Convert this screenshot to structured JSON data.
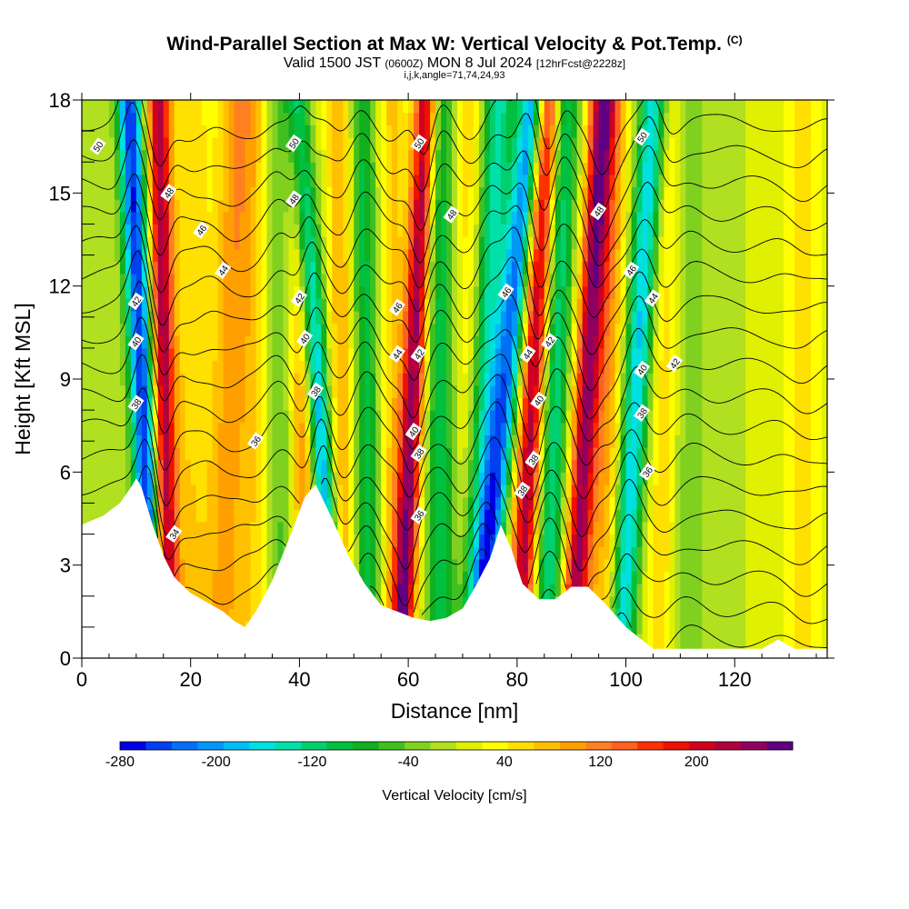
{
  "title": "Wind-Parallel Section at Max W: Vertical Velocity & Pot.Temp.",
  "copyright_mark": "(C)",
  "valid_prefix": "Valid 1500 JST",
  "valid_utc": "(0600Z)",
  "valid_date": "MON 8 Jul 2024",
  "forecast_info": "[12hrFcst@2228z]",
  "ijk_info": "i,j,k,angle=71,74,24,93",
  "chart_data": {
    "type": "heatmap",
    "xlabel": "Distance [nm]",
    "ylabel": "Height [Kft MSL]",
    "xlim": [
      0,
      137
    ],
    "ylim": [
      0,
      18
    ],
    "x_ticks": [
      0,
      20,
      40,
      60,
      80,
      100,
      120
    ],
    "y_ticks": [
      0,
      3,
      6,
      9,
      12,
      15,
      18
    ],
    "grid": false,
    "colorbar": {
      "title": "Vertical Velocity [cm/s]",
      "range": [
        -280,
        280
      ],
      "tick_labels": [
        -280,
        -200,
        -120,
        -40,
        40,
        120,
        200
      ],
      "colors": [
        "#0000e6",
        "#0040f0",
        "#0070f5",
        "#0098f8",
        "#00bff8",
        "#00e0e0",
        "#00e0a8",
        "#00d070",
        "#00c040",
        "#10b020",
        "#40c020",
        "#80d020",
        "#b0e020",
        "#e0f000",
        "#ffff00",
        "#ffe000",
        "#ffc000",
        "#ffa000",
        "#ff8020",
        "#ff6020",
        "#ff3000",
        "#f01000",
        "#d00020",
        "#b00040",
        "#900060",
        "#600080"
      ]
    },
    "terrain_profile": {
      "x": [
        0,
        4,
        7,
        9,
        10,
        11,
        13,
        15,
        17,
        20,
        23,
        26,
        28,
        30,
        32,
        35,
        38,
        41,
        43,
        46,
        49,
        52,
        55,
        58,
        61,
        64,
        67,
        70,
        72,
        75,
        77,
        79,
        81,
        84,
        87,
        90,
        93,
        96,
        100,
        105,
        110,
        115,
        120,
        125,
        128,
        131,
        134,
        137
      ],
      "height": [
        4.3,
        4.6,
        5.0,
        5.5,
        5.8,
        5.5,
        4.3,
        3.3,
        2.6,
        2.1,
        1.8,
        1.5,
        1.2,
        1.0,
        1.5,
        2.5,
        3.8,
        5.2,
        5.6,
        4.5,
        3.3,
        2.4,
        1.7,
        1.5,
        1.3,
        1.2,
        1.3,
        1.6,
        2.2,
        3.2,
        4.3,
        3.5,
        2.4,
        1.9,
        1.9,
        2.3,
        2.3,
        1.8,
        1.0,
        0.3,
        0.3,
        0.3,
        0.3,
        0.3,
        0.6,
        0.3,
        0.3,
        0.3
      ]
    },
    "velocity_bands": [
      {
        "x": 11,
        "w": -260,
        "sig": 1.6,
        "tilt": -0.25
      },
      {
        "x": 15,
        "w": 230,
        "sig": 1.5,
        "tilt": -0.1
      },
      {
        "x": 20,
        "w": 60,
        "sig": 2.5,
        "tilt": 0.0
      },
      {
        "x": 27,
        "w": 90,
        "sig": 2.5,
        "tilt": 0.15
      },
      {
        "x": 32,
        "w": 60,
        "sig": 2.5,
        "tilt": 0.0
      },
      {
        "x": 36,
        "w": -60,
        "sig": 2.0,
        "tilt": 0.0
      },
      {
        "x": 41,
        "w": 140,
        "sig": 1.8,
        "tilt": -0.1
      },
      {
        "x": 43,
        "w": -240,
        "sig": 1.6,
        "tilt": -0.35
      },
      {
        "x": 48,
        "w": 100,
        "sig": 2.0,
        "tilt": 0.0
      },
      {
        "x": 52,
        "w": -110,
        "sig": 2.0,
        "tilt": -0.1
      },
      {
        "x": 57,
        "w": 70,
        "sig": 2.0,
        "tilt": 0.0
      },
      {
        "x": 61,
        "w": 240,
        "sig": 1.5,
        "tilt": 0.25
      },
      {
        "x": 66,
        "w": -100,
        "sig": 2.0,
        "tilt": 0.0
      },
      {
        "x": 71,
        "w": 60,
        "sig": 2.0,
        "tilt": 0.0
      },
      {
        "x": 74,
        "w": -140,
        "sig": 2.0,
        "tilt": 0.3
      },
      {
        "x": 78,
        "w": -220,
        "sig": 1.8,
        "tilt": 0.55
      },
      {
        "x": 83,
        "w": 230,
        "sig": 1.7,
        "tilt": 0.3
      },
      {
        "x": 87,
        "w": -130,
        "sig": 1.8,
        "tilt": 0.2
      },
      {
        "x": 93,
        "w": 240,
        "sig": 1.7,
        "tilt": 0.3
      },
      {
        "x": 97,
        "w": 90,
        "sig": 2.0,
        "tilt": 0.1
      },
      {
        "x": 102,
        "w": -180,
        "sig": 1.8,
        "tilt": 0.35
      },
      {
        "x": 107,
        "w": 60,
        "sig": 2.0,
        "tilt": 0.1
      },
      {
        "x": 112,
        "w": -40,
        "sig": 2.5,
        "tilt": 0.0
      },
      {
        "x": 133,
        "w": 100,
        "sig": 2.5,
        "tilt": 0.0
      }
    ],
    "pot_temp_contours": {
      "levels_K": [
        34,
        35,
        36,
        37,
        38,
        39,
        40,
        41,
        42,
        43,
        44,
        45,
        46,
        47,
        48,
        49,
        50,
        51
      ],
      "labels": [
        {
          "text": "50",
          "x": 3,
          "y": 16.5
        },
        {
          "text": "48",
          "x": 16,
          "y": 15.0
        },
        {
          "text": "46",
          "x": 22,
          "y": 13.8
        },
        {
          "text": "44",
          "x": 26,
          "y": 12.5
        },
        {
          "text": "42",
          "x": 10,
          "y": 11.5
        },
        {
          "text": "40",
          "x": 10,
          "y": 10.2
        },
        {
          "text": "38",
          "x": 10,
          "y": 8.2
        },
        {
          "text": "34",
          "x": 17,
          "y": 4.0
        },
        {
          "text": "36",
          "x": 32,
          "y": 7.0
        },
        {
          "text": "50",
          "x": 39,
          "y": 16.6
        },
        {
          "text": "48",
          "x": 39,
          "y": 14.8
        },
        {
          "text": "42",
          "x": 40,
          "y": 11.6
        },
        {
          "text": "40",
          "x": 41,
          "y": 10.3
        },
        {
          "text": "38",
          "x": 43,
          "y": 8.6
        },
        {
          "text": "50",
          "x": 62,
          "y": 16.6
        },
        {
          "text": "48",
          "x": 68,
          "y": 14.3
        },
        {
          "text": "46",
          "x": 58,
          "y": 11.3
        },
        {
          "text": "44",
          "x": 58,
          "y": 9.8
        },
        {
          "text": "42",
          "x": 62,
          "y": 9.8
        },
        {
          "text": "40",
          "x": 61,
          "y": 7.3
        },
        {
          "text": "38",
          "x": 62,
          "y": 6.6
        },
        {
          "text": "36",
          "x": 62,
          "y": 4.6
        },
        {
          "text": "46",
          "x": 78,
          "y": 11.8
        },
        {
          "text": "44",
          "x": 82,
          "y": 9.8
        },
        {
          "text": "42",
          "x": 86,
          "y": 10.2
        },
        {
          "text": "40",
          "x": 84,
          "y": 8.3
        },
        {
          "text": "38",
          "x": 83,
          "y": 6.4
        },
        {
          "text": "38",
          "x": 81,
          "y": 5.4
        },
        {
          "text": "50",
          "x": 103,
          "y": 16.8
        },
        {
          "text": "48",
          "x": 95,
          "y": 14.4
        },
        {
          "text": "46",
          "x": 101,
          "y": 12.5
        },
        {
          "text": "44",
          "x": 105,
          "y": 11.6
        },
        {
          "text": "42",
          "x": 109,
          "y": 9.5
        },
        {
          "text": "40",
          "x": 103,
          "y": 9.3
        },
        {
          "text": "38",
          "x": 103,
          "y": 7.9
        },
        {
          "text": "36",
          "x": 104,
          "y": 6.0
        }
      ]
    }
  }
}
